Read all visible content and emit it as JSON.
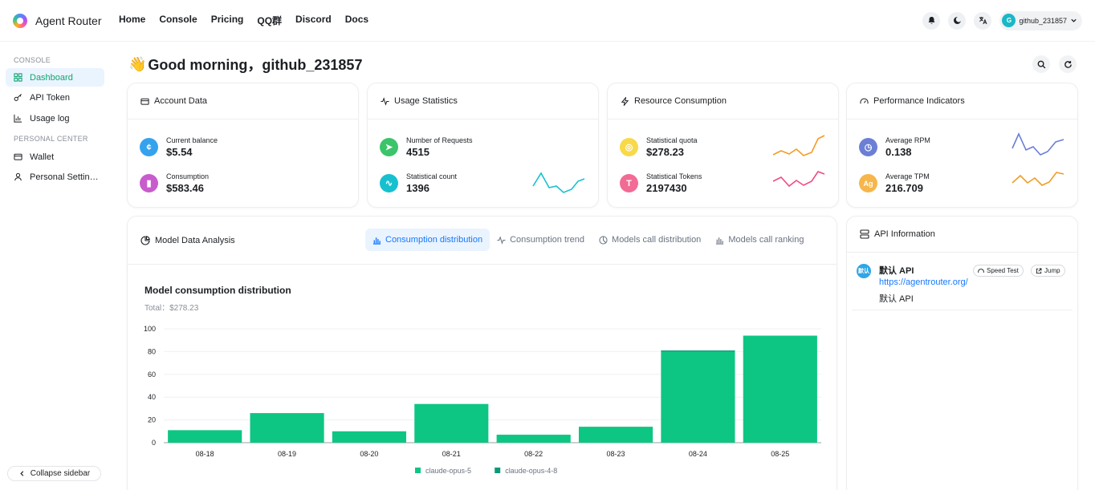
{
  "header": {
    "brand": "Agent Router",
    "nav": [
      "Home",
      "Console",
      "Pricing",
      "QQ群",
      "Discord",
      "Docs"
    ],
    "user": {
      "name": "github_231857",
      "initial": "G"
    }
  },
  "sidebar": {
    "console_title": "CONSOLE",
    "console_items": [
      {
        "label": "Dashboard",
        "icon": "dashboard-icon",
        "active": true
      },
      {
        "label": "API Token",
        "icon": "key-icon"
      },
      {
        "label": "Usage log",
        "icon": "bar-chart-icon"
      }
    ],
    "personal_title": "PERSONAL CENTER",
    "personal_items": [
      {
        "label": "Wallet",
        "icon": "wallet-icon"
      },
      {
        "label": "Personal Settin…",
        "icon": "user-icon"
      }
    ],
    "collapse_label": "Collapse sidebar"
  },
  "greeting": {
    "emoji": "👋",
    "text": "Good morning，github_231857"
  },
  "cards": {
    "account": {
      "title": "Account Data",
      "rows": [
        {
          "label": "Current balance",
          "value": "$5.54",
          "color": "#35a2ee"
        },
        {
          "label": "Consumption",
          "value": "$583.46",
          "color": "#c85ccd"
        }
      ]
    },
    "usage": {
      "title": "Usage Statistics",
      "rows": [
        {
          "label": "Number of Requests",
          "value": "4515",
          "color": "#3bc46a"
        },
        {
          "label": "Statistical count",
          "value": "1396",
          "color": "#17c0cf"
        }
      ]
    },
    "resource": {
      "title": "Resource Consumption",
      "rows": [
        {
          "label": "Statistical quota",
          "value": "$278.23",
          "color": "#f8d94a"
        },
        {
          "label": "Statistical Tokens",
          "value": "2197430",
          "color": "#f26b94",
          "glyph": "T"
        }
      ]
    },
    "performance": {
      "title": "Performance Indicators",
      "rows": [
        {
          "label": "Average RPM",
          "value": "0.138",
          "color": "#6c7fd6"
        },
        {
          "label": "Average TPM",
          "value": "216.709",
          "color": "#f6b64a",
          "glyph": "Ag"
        }
      ]
    }
  },
  "analysis": {
    "title": "Model Data Analysis",
    "tabs": [
      {
        "label": "Consumption distribution",
        "active": true
      },
      {
        "label": "Consumption trend"
      },
      {
        "label": "Models call distribution"
      },
      {
        "label": "Models call ranking"
      }
    ],
    "chart_title": "Model consumption distribution",
    "chart_sub": "Total：$278.23"
  },
  "api_info": {
    "title": "API Information",
    "item": {
      "badge": "默认",
      "name": "默认 API",
      "url": "https://agentrouter.org/",
      "desc": "默认 API",
      "speed_test": "Speed Test",
      "jump": "Jump"
    }
  },
  "colors": {
    "primary_green": "#0ec683",
    "dark_green": "#0a9a78",
    "accent_blue": "#1677ff"
  },
  "chart_data": {
    "type": "bar",
    "stacked": true,
    "title": "Model consumption distribution",
    "subtitle": "Total：$278.23",
    "categories": [
      "08-18",
      "08-19",
      "08-20",
      "08-21",
      "08-22",
      "08-23",
      "08-24",
      "08-25"
    ],
    "series": [
      {
        "name": "claude-opus-5",
        "values": [
          11,
          26,
          10,
          34,
          7,
          14,
          80,
          94
        ],
        "color": "#0ec683"
      },
      {
        "name": "claude-opus-4-8",
        "values": [
          0,
          0,
          0,
          0,
          0,
          0,
          1,
          0
        ],
        "color": "#0a9a78"
      }
    ],
    "yticks": [
      0,
      20,
      40,
      60,
      80,
      100
    ],
    "ylim": [
      0,
      100
    ],
    "grid": true,
    "legend": "bottom"
  }
}
